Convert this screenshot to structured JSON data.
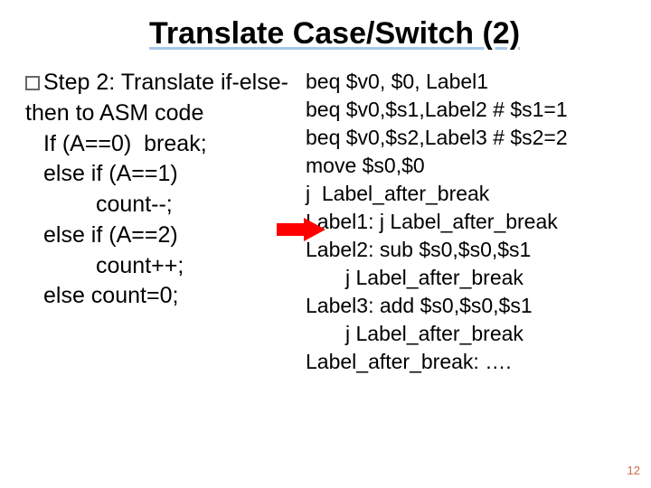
{
  "title": "Translate Case/Switch (2)",
  "step_label": "Step 2: Translate if-else-then to ASM code",
  "page_number": "12",
  "colors": {
    "title_underline": "#a8c8e8",
    "arrow": "#ff0000",
    "text": "#000000",
    "background": "#ffffff",
    "page_num": "#c86e4a"
  },
  "pseudocode": {
    "l1": "If (A==0)  break;",
    "l2": "else if (A==1)",
    "l3": "count--;",
    "l4": "else if (A==2)",
    "l5": "count++;",
    "l6": "else count=0;"
  },
  "asm": {
    "l1": "beq $v0, $0, Label1",
    "l2": "beq $v0,$s1,Label2 # $s1=1",
    "l3": "beq $v0,$s2,Label3 # $s2=2",
    "l4": "move $s0,$0",
    "l5": "j  Label_after_break",
    "l6": "Label1: j Label_after_break",
    "l7": "Label2: sub $s0,$s0,$s1",
    "l8": "j Label_after_break",
    "l9": "Label3: add $s0,$s0,$s1",
    "l10": "j Label_after_break",
    "l11": "Label_after_break: …."
  }
}
